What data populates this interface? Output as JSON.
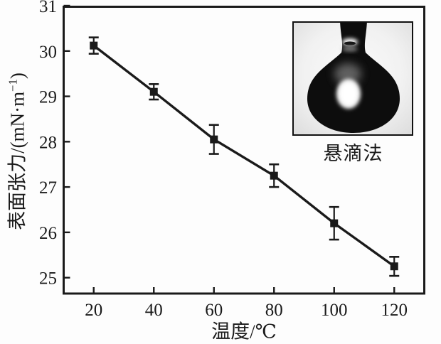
{
  "figure": {
    "colors": {
      "ink": "#1a1a1a",
      "background": "#fdfdfd"
    }
  },
  "chart_data": {
    "type": "line",
    "title": "",
    "xlabel": "温度/℃",
    "ylabel": "表面张力/(mN·m⁻¹)",
    "ylabel_parts": {
      "prefix": "表面张力/(mN·m",
      "sup": "−1",
      "suffix": ")"
    },
    "series": [
      {
        "name": "surface-tension-vs-temperature",
        "x": [
          20,
          40,
          60,
          80,
          100,
          120
        ],
        "y": [
          30.12,
          29.1,
          28.05,
          27.25,
          26.2,
          25.25
        ],
        "yerr": [
          0.18,
          0.17,
          0.32,
          0.25,
          0.36,
          0.21
        ],
        "marker": "square",
        "color": "#1a1a1a"
      }
    ],
    "xticks": [
      20,
      40,
      60,
      80,
      100,
      120
    ],
    "yticks": [
      25,
      26,
      27,
      28,
      29,
      30,
      31
    ],
    "xlim": [
      10,
      130
    ],
    "ylim": [
      24.65,
      31
    ],
    "grid": false,
    "legend": "none"
  },
  "inset": {
    "caption": "悬滴法",
    "image_alt": "pendant-drop-photograph"
  }
}
